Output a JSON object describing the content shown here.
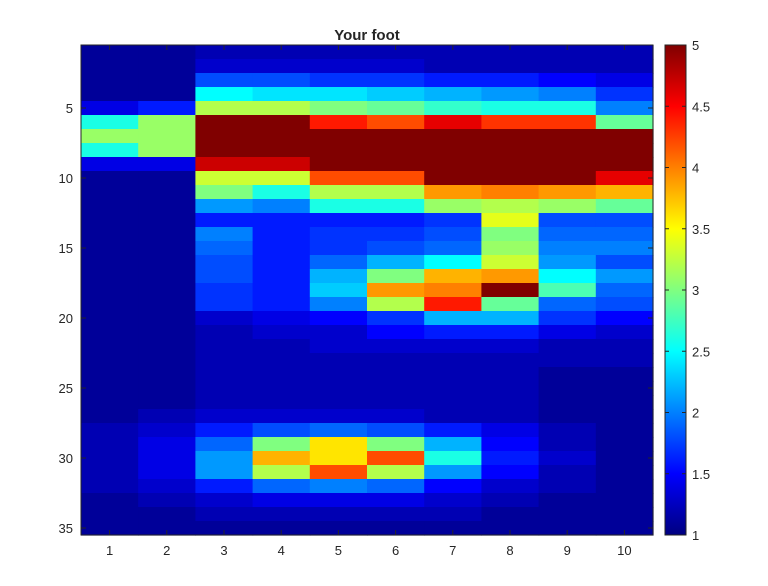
{
  "chart_data": {
    "type": "heatmap",
    "title": "Your foot",
    "xlabel": "",
    "ylabel": "",
    "colormap": "jet",
    "x_tick_labels": [
      "1",
      "2",
      "3",
      "4",
      "5",
      "6",
      "7",
      "8",
      "9",
      "10"
    ],
    "y_tick_labels": [
      "5",
      "10",
      "15",
      "20",
      "25",
      "30",
      "35"
    ],
    "colorbar_ticks": [
      "1",
      "1.5",
      "2",
      "2.5",
      "3",
      "3.5",
      "4",
      "4.5",
      "5"
    ],
    "clim": [
      1,
      5
    ],
    "xlim": [
      0.5,
      10.5
    ],
    "ylim": [
      0.5,
      35.5
    ],
    "rows": 35,
    "cols": 10,
    "values": [
      [
        1.1,
        1.1,
        1.2,
        1.2,
        1.2,
        1.2,
        1.2,
        1.2,
        1.2,
        1.2
      ],
      [
        1.1,
        1.1,
        1.3,
        1.3,
        1.3,
        1.3,
        1.2,
        1.2,
        1.2,
        1.2
      ],
      [
        1.1,
        1.1,
        1.8,
        1.8,
        1.7,
        1.7,
        1.6,
        1.6,
        1.5,
        1.4
      ],
      [
        1.1,
        1.1,
        2.5,
        2.4,
        2.4,
        2.3,
        2.2,
        2.1,
        2.0,
        1.7
      ],
      [
        1.4,
        1.6,
        3.2,
        3.2,
        3.0,
        2.9,
        2.7,
        2.6,
        2.6,
        2.0
      ],
      [
        2.6,
        3.1,
        5.0,
        5.0,
        4.4,
        4.2,
        4.6,
        4.3,
        4.3,
        2.9
      ],
      [
        3.1,
        3.1,
        5.0,
        5.0,
        5.0,
        5.0,
        5.0,
        5.0,
        5.0,
        5.0
      ],
      [
        2.6,
        3.1,
        5.0,
        5.0,
        5.0,
        5.0,
        5.0,
        5.0,
        5.0,
        5.0
      ],
      [
        1.4,
        1.4,
        4.7,
        4.7,
        5.0,
        5.0,
        5.0,
        5.0,
        5.0,
        5.0
      ],
      [
        1.1,
        1.1,
        3.3,
        3.3,
        4.2,
        4.2,
        5.0,
        5.0,
        5.0,
        4.6
      ],
      [
        1.1,
        1.1,
        3.0,
        2.6,
        3.2,
        3.2,
        3.9,
        4.0,
        3.9,
        3.8
      ],
      [
        1.1,
        1.1,
        2.1,
        2.0,
        2.6,
        2.6,
        3.1,
        3.2,
        3.1,
        2.9
      ],
      [
        1.1,
        1.1,
        1.6,
        1.6,
        1.6,
        1.6,
        1.7,
        3.4,
        1.8,
        1.8
      ],
      [
        1.1,
        1.1,
        2.0,
        1.6,
        1.7,
        1.7,
        1.8,
        3.0,
        1.9,
        1.9
      ],
      [
        1.1,
        1.1,
        1.9,
        1.6,
        1.7,
        1.8,
        1.9,
        3.1,
        2.0,
        2.0
      ],
      [
        1.1,
        1.1,
        1.8,
        1.6,
        1.9,
        2.2,
        2.5,
        3.3,
        2.1,
        1.8
      ],
      [
        1.1,
        1.1,
        1.8,
        1.6,
        2.2,
        3.0,
        3.8,
        3.9,
        2.5,
        2.1
      ],
      [
        1.1,
        1.1,
        1.7,
        1.6,
        2.3,
        3.9,
        4.0,
        5.0,
        2.8,
        1.9
      ],
      [
        1.1,
        1.1,
        1.7,
        1.6,
        2.0,
        3.2,
        4.4,
        2.9,
        1.9,
        1.8
      ],
      [
        1.1,
        1.1,
        1.3,
        1.4,
        1.5,
        1.7,
        2.2,
        2.2,
        1.7,
        1.5
      ],
      [
        1.1,
        1.1,
        1.2,
        1.3,
        1.3,
        1.5,
        1.6,
        1.6,
        1.4,
        1.3
      ],
      [
        1.1,
        1.1,
        1.2,
        1.2,
        1.3,
        1.3,
        1.3,
        1.3,
        1.2,
        1.2
      ],
      [
        1.1,
        1.1,
        1.2,
        1.2,
        1.2,
        1.2,
        1.2,
        1.2,
        1.2,
        1.2
      ],
      [
        1.1,
        1.1,
        1.2,
        1.2,
        1.2,
        1.2,
        1.2,
        1.2,
        1.1,
        1.1
      ],
      [
        1.1,
        1.1,
        1.2,
        1.2,
        1.2,
        1.2,
        1.2,
        1.2,
        1.1,
        1.1
      ],
      [
        1.1,
        1.1,
        1.2,
        1.2,
        1.2,
        1.2,
        1.2,
        1.2,
        1.1,
        1.1
      ],
      [
        1.1,
        1.2,
        1.3,
        1.3,
        1.3,
        1.3,
        1.2,
        1.2,
        1.1,
        1.1
      ],
      [
        1.2,
        1.3,
        1.6,
        1.8,
        1.9,
        1.8,
        1.6,
        1.4,
        1.2,
        1.1
      ],
      [
        1.2,
        1.4,
        1.9,
        3.0,
        3.6,
        3.0,
        2.2,
        1.5,
        1.2,
        1.1
      ],
      [
        1.2,
        1.4,
        2.1,
        3.8,
        3.6,
        4.2,
        2.6,
        1.6,
        1.3,
        1.1
      ],
      [
        1.2,
        1.4,
        2.1,
        3.2,
        4.2,
        3.2,
        2.1,
        1.5,
        1.2,
        1.1
      ],
      [
        1.2,
        1.3,
        1.6,
        1.9,
        2.0,
        1.9,
        1.5,
        1.3,
        1.2,
        1.1
      ],
      [
        1.1,
        1.2,
        1.3,
        1.4,
        1.4,
        1.4,
        1.3,
        1.2,
        1.1,
        1.1
      ],
      [
        1.1,
        1.1,
        1.2,
        1.2,
        1.2,
        1.2,
        1.2,
        1.1,
        1.1,
        1.1
      ],
      [
        1.1,
        1.1,
        1.1,
        1.1,
        1.1,
        1.1,
        1.1,
        1.1,
        1.1,
        1.1
      ]
    ]
  }
}
